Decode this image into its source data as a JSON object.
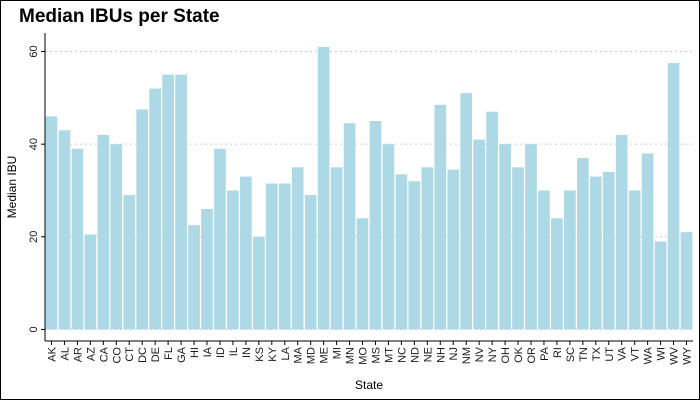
{
  "chart_data": {
    "type": "bar",
    "title": "Median IBUs per State",
    "xlabel": "State",
    "ylabel": "Median IBU",
    "categories": [
      "AK",
      "AL",
      "AR",
      "AZ",
      "CA",
      "CO",
      "CT",
      "DC",
      "DE",
      "FL",
      "GA",
      "HI",
      "IA",
      "ID",
      "IL",
      "IN",
      "KS",
      "KY",
      "LA",
      "MA",
      "MD",
      "ME",
      "MI",
      "MN",
      "MO",
      "MS",
      "MT",
      "NC",
      "ND",
      "NE",
      "NH",
      "NJ",
      "NM",
      "NV",
      "NY",
      "OH",
      "OK",
      "OR",
      "PA",
      "RI",
      "SC",
      "TN",
      "TX",
      "UT",
      "VA",
      "VT",
      "WA",
      "WI",
      "WV",
      "WY"
    ],
    "values": [
      46,
      43,
      39,
      20.5,
      42,
      40,
      29,
      47.5,
      52,
      55,
      55,
      22.5,
      26,
      39,
      30,
      33,
      20,
      31.5,
      31.5,
      35,
      29,
      61,
      35,
      44.5,
      24,
      45,
      40,
      33.5,
      32,
      35,
      48.5,
      34.5,
      51,
      41,
      47,
      40,
      35,
      40,
      30,
      24,
      30,
      37,
      33,
      34,
      42,
      30,
      38,
      19,
      57.5,
      21
    ],
    "ylim": [
      -2.5,
      64
    ],
    "yticks": [
      0,
      20,
      40,
      60
    ],
    "grid": true,
    "colors": {
      "bar": "#add8e6",
      "grid": "#cccccc",
      "axis": "#000000"
    }
  }
}
